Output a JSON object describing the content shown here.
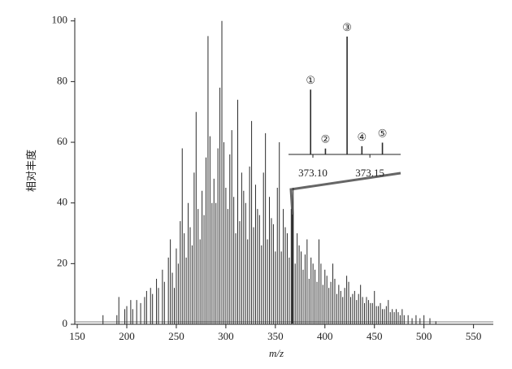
{
  "chart_data": {
    "type": "spectrum",
    "xlabel": "m/z",
    "ylabel": "相对丰度",
    "color": "#2b2b2b",
    "xlim": [
      147.5,
      570
    ],
    "ylim": [
      0,
      101
    ],
    "xticks": [
      150,
      200,
      250,
      300,
      350,
      400,
      450,
      500,
      550
    ],
    "yticks": [
      0,
      20,
      40,
      60,
      80,
      100
    ],
    "x": [
      176,
      190,
      192,
      198,
      200,
      204,
      206,
      210,
      214,
      218,
      220,
      224,
      226,
      230,
      232,
      236,
      238,
      242,
      244,
      246,
      248,
      250,
      252,
      254,
      256,
      258,
      260,
      262,
      264,
      266,
      268,
      270,
      272,
      274,
      276,
      278,
      280,
      282,
      284,
      286,
      288,
      290,
      292,
      294,
      296,
      298,
      300,
      302,
      304,
      306,
      308,
      310,
      312,
      314,
      316,
      318,
      320,
      322,
      324,
      326,
      328,
      330,
      332,
      334,
      336,
      338,
      340,
      342,
      344,
      346,
      348,
      350,
      352,
      354,
      356,
      358,
      360,
      362,
      364,
      366,
      368,
      370,
      372,
      374,
      376,
      378,
      380,
      382,
      384,
      386,
      388,
      390,
      392,
      394,
      396,
      398,
      400,
      402,
      404,
      406,
      408,
      410,
      412,
      414,
      416,
      418,
      420,
      422,
      424,
      426,
      428,
      430,
      432,
      434,
      436,
      438,
      440,
      442,
      444,
      446,
      448,
      450,
      452,
      454,
      456,
      458,
      460,
      462,
      464,
      466,
      468,
      470,
      472,
      474,
      476,
      478,
      480,
      484,
      488,
      492,
      496,
      500,
      506,
      512
    ],
    "values": [
      3,
      3,
      9,
      5,
      6,
      8,
      5,
      8,
      7,
      9,
      11,
      12,
      10,
      15,
      12,
      18,
      14,
      22,
      28,
      17,
      12,
      25,
      20,
      34,
      58,
      30,
      22,
      40,
      32,
      26,
      50,
      70,
      38,
      28,
      44,
      36,
      55,
      95,
      62,
      40,
      48,
      40,
      58,
      78,
      100,
      60,
      45,
      38,
      56,
      64,
      42,
      30,
      74,
      34,
      50,
      44,
      40,
      28,
      52,
      67,
      32,
      46,
      38,
      36,
      26,
      50,
      63,
      28,
      42,
      35,
      33,
      24,
      45,
      60,
      24,
      38,
      32,
      30,
      22,
      38,
      45,
      20,
      30,
      26,
      24,
      18,
      23,
      28,
      15,
      22,
      20,
      18,
      14,
      28,
      20,
      13,
      18,
      16,
      12,
      14,
      20,
      15,
      10,
      13,
      11,
      9,
      12,
      16,
      14,
      9,
      10,
      11,
      8,
      10,
      13,
      9,
      7,
      9,
      8,
      7,
      7,
      11,
      6,
      6,
      7,
      5,
      5,
      6,
      8,
      4,
      5,
      4,
      5,
      4,
      3,
      5,
      3,
      3,
      2,
      3,
      2,
      3,
      2,
      1
    ],
    "inset": {
      "type": "spectrum",
      "xlim": [
        373.0786,
        373.177
      ],
      "ylim": [
        0,
        100
      ],
      "xticks": [
        {
          "value": 373.1,
          "label": "373.10"
        },
        {
          "value": 373.15,
          "label": "373.15"
        }
      ],
      "x": [
        373.098,
        373.111,
        373.13,
        373.143,
        373.161
      ],
      "values": [
        55,
        5,
        100,
        7,
        10
      ],
      "peak_labels": [
        "①",
        "②",
        "③",
        "④",
        "⑤"
      ]
    }
  }
}
